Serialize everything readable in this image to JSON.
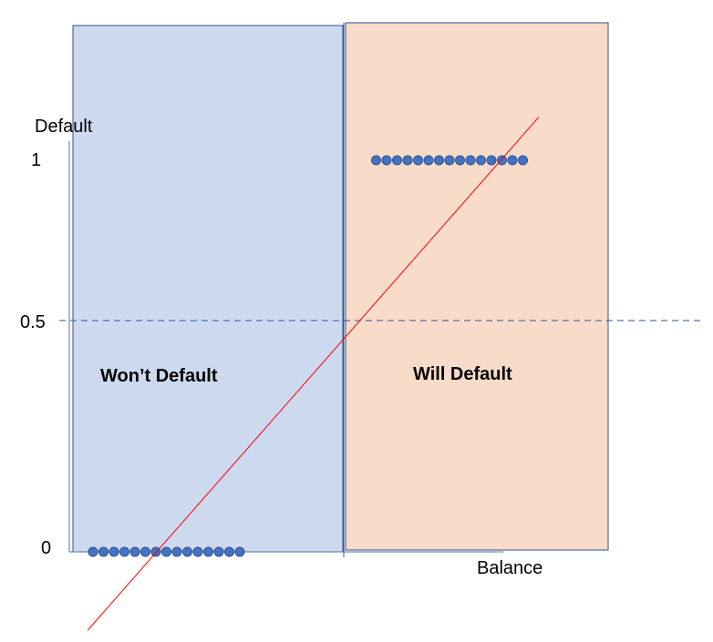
{
  "chart_data": {
    "type": "scatter",
    "ylabel": "Default",
    "xlabel": "Balance",
    "y_ticks": [
      "1",
      "0.5",
      "0"
    ],
    "regions": [
      {
        "label": "Won’t Default",
        "color": "#cdd9ef"
      },
      {
        "label": "Will Default",
        "color": "#f8dbc9"
      }
    ],
    "threshold": 0.5,
    "series": [
      {
        "y": 0,
        "x": [
          1,
          2,
          3,
          4,
          5,
          6,
          7,
          8,
          9,
          10,
          11,
          12,
          13,
          14,
          15
        ]
      },
      {
        "y": 1,
        "x": [
          28,
          29,
          30,
          31,
          32,
          33,
          34,
          35,
          36,
          37,
          38,
          39,
          40,
          41,
          42
        ]
      }
    ],
    "fit_line": {
      "x": [
        0.5,
        43.5
      ],
      "y": [
        -0.2,
        1.11
      ]
    },
    "colors": {
      "point": "#4472c4",
      "point_edge": "#2f528f",
      "fit": "#ff0000",
      "threshold": "#2f528f",
      "region_edge": "#2f528f"
    }
  }
}
